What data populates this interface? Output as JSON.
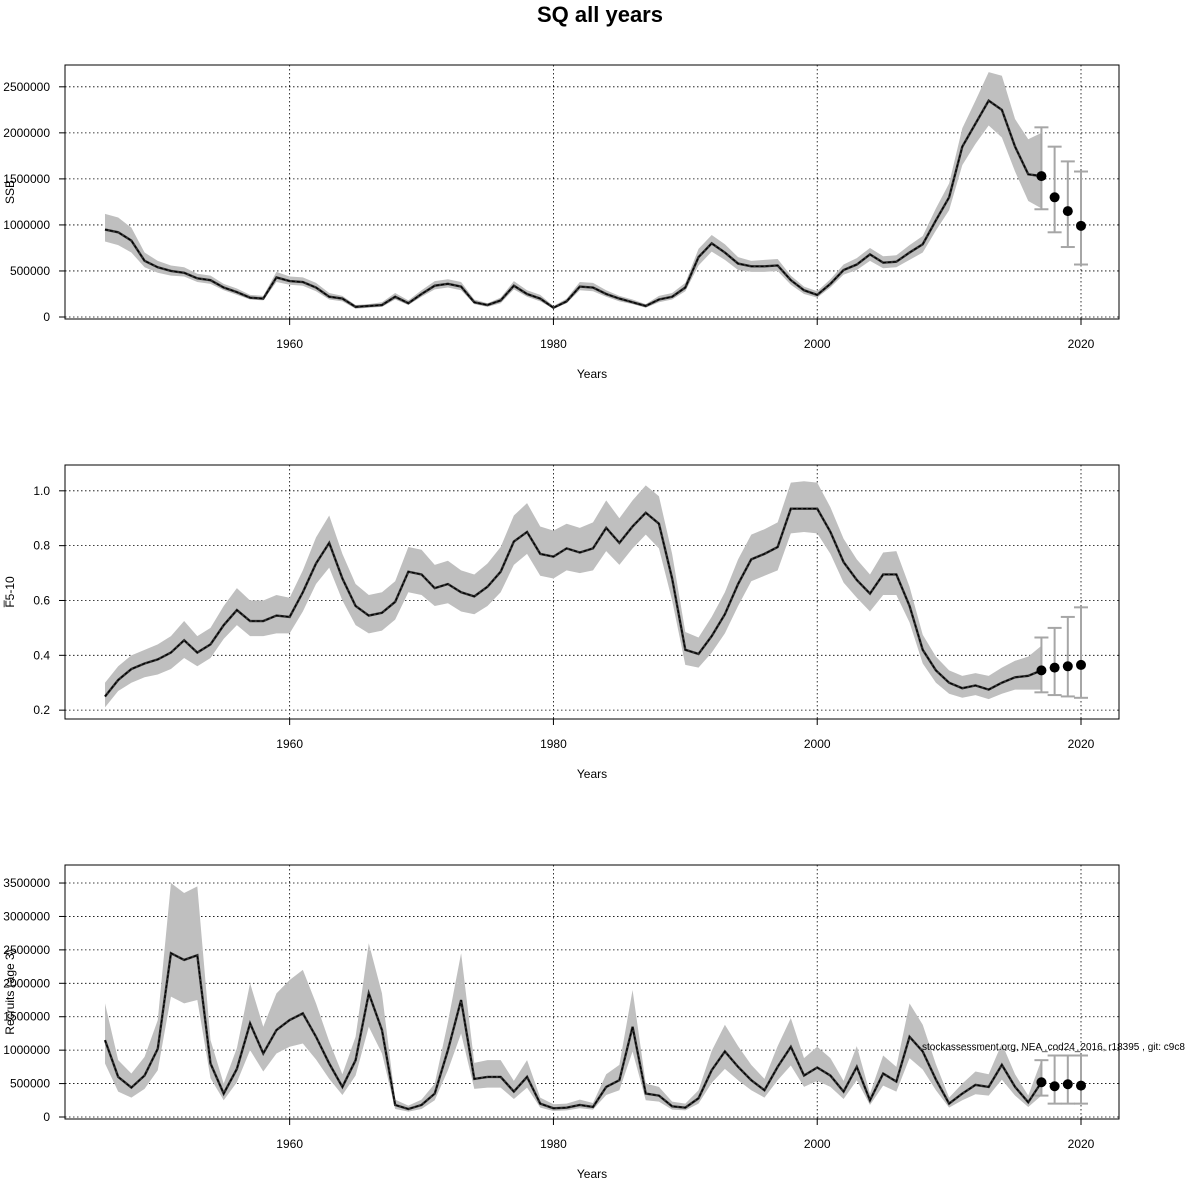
{
  "title": "SQ all years",
  "footnote": "stockassessment.org, NEA_cod24_2016, r18395 , git: c9c8",
  "colors": {
    "band": "#bfbfbf",
    "line": "#000000",
    "whisker": "#a6a6a6",
    "grid": "#000000"
  },
  "chart_data": [
    {
      "type": "line",
      "xlabel": "Years",
      "ylabel": "SSB",
      "xlim": [
        1946,
        2020
      ],
      "ylim": [
        0,
        2650000
      ],
      "xticks": [
        1960,
        1980,
        2000,
        2020
      ],
      "yticks": [
        0,
        500000,
        1000000,
        1500000,
        2000000,
        2500000
      ],
      "grid": true,
      "years": [
        1946,
        1947,
        1948,
        1949,
        1950,
        1951,
        1952,
        1953,
        1954,
        1955,
        1956,
        1957,
        1958,
        1959,
        1960,
        1961,
        1962,
        1963,
        1964,
        1965,
        1966,
        1967,
        1968,
        1969,
        1970,
        1971,
        1972,
        1973,
        1974,
        1975,
        1976,
        1977,
        1978,
        1979,
        1980,
        1981,
        1982,
        1983,
        1984,
        1985,
        1986,
        1987,
        1988,
        1989,
        1990,
        1991,
        1992,
        1993,
        1994,
        1995,
        1996,
        1997,
        1998,
        1999,
        2000,
        2001,
        2002,
        2003,
        2004,
        2005,
        2006,
        2007,
        2008,
        2009,
        2010,
        2011,
        2012,
        2013,
        2014,
        2015,
        2016,
        2017
      ],
      "estimate": [
        950000,
        920000,
        830000,
        610000,
        540000,
        500000,
        480000,
        420000,
        400000,
        320000,
        270000,
        210000,
        200000,
        430000,
        390000,
        380000,
        320000,
        220000,
        200000,
        110000,
        120000,
        130000,
        220000,
        150000,
        250000,
        340000,
        360000,
        330000,
        160000,
        130000,
        180000,
        340000,
        250000,
        200000,
        100000,
        170000,
        330000,
        320000,
        250000,
        200000,
        160000,
        120000,
        190000,
        220000,
        320000,
        650000,
        800000,
        700000,
        580000,
        550000,
        550000,
        560000,
        400000,
        290000,
        240000,
        360000,
        510000,
        570000,
        680000,
        590000,
        600000,
        700000,
        790000,
        1050000,
        1300000,
        1850000,
        2100000,
        2350000,
        2250000,
        1850000,
        1550000,
        1530000
      ],
      "lower": [
        820000,
        780000,
        700000,
        540000,
        480000,
        450000,
        440000,
        380000,
        360000,
        290000,
        240000,
        190000,
        180000,
        380000,
        350000,
        340000,
        280000,
        190000,
        170000,
        90000,
        100000,
        110000,
        190000,
        130000,
        220000,
        300000,
        320000,
        290000,
        140000,
        110000,
        150000,
        300000,
        220000,
        170000,
        90000,
        150000,
        290000,
        280000,
        220000,
        170000,
        140000,
        100000,
        160000,
        190000,
        280000,
        560000,
        710000,
        620000,
        510000,
        490000,
        490000,
        500000,
        350000,
        250000,
        210000,
        320000,
        460000,
        510000,
        610000,
        530000,
        540000,
        620000,
        700000,
        940000,
        1160000,
        1650000,
        1880000,
        2080000,
        1950000,
        1580000,
        1260000,
        1180000
      ],
      "upper": [
        1120000,
        1080000,
        970000,
        700000,
        610000,
        560000,
        540000,
        470000,
        450000,
        360000,
        310000,
        240000,
        230000,
        490000,
        440000,
        430000,
        370000,
        260000,
        230000,
        130000,
        140000,
        160000,
        260000,
        180000,
        290000,
        390000,
        410000,
        380000,
        190000,
        150000,
        210000,
        390000,
        290000,
        240000,
        120000,
        200000,
        380000,
        370000,
        290000,
        230000,
        190000,
        140000,
        230000,
        260000,
        370000,
        740000,
        890000,
        790000,
        650000,
        610000,
        620000,
        630000,
        450000,
        330000,
        280000,
        410000,
        570000,
        640000,
        750000,
        660000,
        670000,
        780000,
        880000,
        1180000,
        1450000,
        2050000,
        2350000,
        2660000,
        2620000,
        2150000,
        1930000,
        2000000
      ],
      "forecast": {
        "years": [
          2017,
          2018,
          2019,
          2020
        ],
        "values": [
          1530000,
          1300000,
          1150000,
          990000
        ],
        "lower": [
          1170000,
          920000,
          760000,
          570000
        ],
        "upper": [
          2060000,
          1850000,
          1690000,
          1580000
        ]
      }
    },
    {
      "type": "line",
      "xlabel": "Years",
      "ylabel": "F̅5-10",
      "xlim": [
        1946,
        2020
      ],
      "ylim": [
        0.175,
        1.065
      ],
      "xticks": [
        1960,
        1980,
        2000,
        2020
      ],
      "yticks": [
        0.2,
        0.4,
        0.6,
        0.8,
        1.0
      ],
      "ytick_labels": [
        "0.2",
        "0.4",
        "0.6",
        "0.8",
        "1.0"
      ],
      "grid": true,
      "years": [
        1946,
        1947,
        1948,
        1949,
        1950,
        1951,
        1952,
        1953,
        1954,
        1955,
        1956,
        1957,
        1958,
        1959,
        1960,
        1961,
        1962,
        1963,
        1964,
        1965,
        1966,
        1967,
        1968,
        1969,
        1970,
        1971,
        1972,
        1973,
        1974,
        1975,
        1976,
        1977,
        1978,
        1979,
        1980,
        1981,
        1982,
        1983,
        1984,
        1985,
        1986,
        1987,
        1988,
        1989,
        1990,
        1991,
        1992,
        1993,
        1994,
        1995,
        1996,
        1997,
        1998,
        1999,
        2000,
        2001,
        2002,
        2003,
        2004,
        2005,
        2006,
        2007,
        2008,
        2009,
        2010,
        2011,
        2012,
        2013,
        2014,
        2015,
        2016,
        2017
      ],
      "estimate": [
        0.25,
        0.31,
        0.35,
        0.37,
        0.385,
        0.41,
        0.455,
        0.41,
        0.44,
        0.51,
        0.565,
        0.525,
        0.525,
        0.545,
        0.54,
        0.63,
        0.735,
        0.81,
        0.68,
        0.58,
        0.545,
        0.555,
        0.595,
        0.705,
        0.695,
        0.645,
        0.66,
        0.63,
        0.615,
        0.65,
        0.705,
        0.815,
        0.85,
        0.77,
        0.76,
        0.79,
        0.775,
        0.79,
        0.865,
        0.81,
        0.87,
        0.92,
        0.88,
        0.68,
        0.42,
        0.405,
        0.47,
        0.55,
        0.66,
        0.75,
        0.77,
        0.795,
        0.935,
        0.935,
        0.935,
        0.85,
        0.74,
        0.675,
        0.625,
        0.695,
        0.695,
        0.58,
        0.42,
        0.345,
        0.3,
        0.28,
        0.29,
        0.275,
        0.3,
        0.32,
        0.325,
        0.345
      ],
      "lower": [
        0.21,
        0.27,
        0.3,
        0.32,
        0.33,
        0.35,
        0.39,
        0.36,
        0.39,
        0.46,
        0.51,
        0.47,
        0.47,
        0.48,
        0.48,
        0.56,
        0.66,
        0.72,
        0.6,
        0.51,
        0.48,
        0.49,
        0.53,
        0.63,
        0.62,
        0.58,
        0.59,
        0.56,
        0.55,
        0.58,
        0.63,
        0.73,
        0.77,
        0.69,
        0.68,
        0.71,
        0.7,
        0.71,
        0.78,
        0.73,
        0.79,
        0.84,
        0.79,
        0.6,
        0.365,
        0.355,
        0.41,
        0.48,
        0.58,
        0.67,
        0.69,
        0.71,
        0.845,
        0.85,
        0.845,
        0.77,
        0.665,
        0.61,
        0.56,
        0.62,
        0.62,
        0.52,
        0.37,
        0.3,
        0.26,
        0.245,
        0.255,
        0.24,
        0.26,
        0.275,
        0.275,
        0.275
      ],
      "upper": [
        0.3,
        0.36,
        0.4,
        0.42,
        0.44,
        0.47,
        0.525,
        0.47,
        0.5,
        0.58,
        0.645,
        0.6,
        0.6,
        0.62,
        0.61,
        0.71,
        0.83,
        0.91,
        0.77,
        0.66,
        0.62,
        0.63,
        0.67,
        0.795,
        0.785,
        0.73,
        0.745,
        0.71,
        0.695,
        0.735,
        0.795,
        0.91,
        0.955,
        0.87,
        0.855,
        0.88,
        0.865,
        0.885,
        0.965,
        0.9,
        0.965,
        1.02,
        0.98,
        0.77,
        0.485,
        0.465,
        0.54,
        0.63,
        0.75,
        0.84,
        0.86,
        0.885,
        1.03,
        1.035,
        1.03,
        0.94,
        0.825,
        0.75,
        0.695,
        0.775,
        0.78,
        0.65,
        0.475,
        0.395,
        0.345,
        0.325,
        0.335,
        0.325,
        0.355,
        0.38,
        0.395,
        0.435
      ],
      "forecast": {
        "years": [
          2017,
          2018,
          2019,
          2020
        ],
        "values": [
          0.345,
          0.355,
          0.36,
          0.365
        ],
        "lower": [
          0.265,
          0.255,
          0.25,
          0.245
        ],
        "upper": [
          0.465,
          0.5,
          0.54,
          0.575
        ]
      }
    },
    {
      "type": "line",
      "xlabel": "Years",
      "ylabel": "Recruits (age 3)",
      "xlim": [
        1946,
        2020
      ],
      "ylim": [
        0,
        3650000
      ],
      "xticks": [
        1960,
        1980,
        2000,
        2020
      ],
      "yticks": [
        0,
        500000,
        1000000,
        1500000,
        2000000,
        2500000,
        3000000,
        3500000
      ],
      "grid": true,
      "years": [
        1946,
        1947,
        1948,
        1949,
        1950,
        1951,
        1952,
        1953,
        1954,
        1955,
        1956,
        1957,
        1958,
        1959,
        1960,
        1961,
        1962,
        1963,
        1964,
        1965,
        1966,
        1967,
        1968,
        1969,
        1970,
        1971,
        1972,
        1973,
        1974,
        1975,
        1976,
        1977,
        1978,
        1979,
        1980,
        1981,
        1982,
        1983,
        1984,
        1985,
        1986,
        1987,
        1988,
        1989,
        1990,
        1991,
        1992,
        1993,
        1994,
        1995,
        1996,
        1997,
        1998,
        1999,
        2000,
        2001,
        2002,
        2003,
        2004,
        2005,
        2006,
        2007,
        2008,
        2009,
        2010,
        2011,
        2012,
        2013,
        2014,
        2015,
        2016,
        2017
      ],
      "estimate": [
        1150000,
        600000,
        440000,
        620000,
        1020000,
        2450000,
        2350000,
        2420000,
        800000,
        350000,
        720000,
        1400000,
        950000,
        1300000,
        1450000,
        1550000,
        1200000,
        800000,
        450000,
        850000,
        1850000,
        1300000,
        180000,
        120000,
        180000,
        350000,
        1000000,
        1750000,
        570000,
        600000,
        600000,
        380000,
        600000,
        200000,
        130000,
        140000,
        180000,
        150000,
        450000,
        550000,
        1350000,
        350000,
        320000,
        160000,
        140000,
        280000,
        700000,
        980000,
        750000,
        550000,
        400000,
        750000,
        1050000,
        620000,
        740000,
        620000,
        380000,
        750000,
        250000,
        650000,
        530000,
        1200000,
        980000,
        560000,
        200000,
        350000,
        480000,
        450000,
        780000,
        450000,
        220000,
        520000
      ],
      "lower": [
        800000,
        380000,
        290000,
        420000,
        700000,
        1800000,
        1700000,
        1750000,
        580000,
        250000,
        520000,
        1000000,
        680000,
        950000,
        1050000,
        1100000,
        860000,
        570000,
        330000,
        620000,
        1350000,
        950000,
        120000,
        80000,
        120000,
        250000,
        700000,
        1250000,
        420000,
        440000,
        440000,
        270000,
        440000,
        140000,
        90000,
        100000,
        130000,
        110000,
        330000,
        400000,
        980000,
        250000,
        230000,
        110000,
        100000,
        200000,
        510000,
        720000,
        550000,
        400000,
        290000,
        550000,
        770000,
        450000,
        540000,
        450000,
        270000,
        550000,
        180000,
        470000,
        380000,
        880000,
        710000,
        400000,
        140000,
        250000,
        340000,
        320000,
        560000,
        320000,
        150000,
        320000
      ],
      "upper": [
        1700000,
        850000,
        650000,
        900000,
        1450000,
        3500000,
        3350000,
        3450000,
        1150000,
        500000,
        1030000,
        2000000,
        1350000,
        1850000,
        2050000,
        2200000,
        1700000,
        1130000,
        640000,
        1200000,
        2600000,
        1850000,
        260000,
        170000,
        260000,
        500000,
        1420000,
        2450000,
        810000,
        850000,
        850000,
        540000,
        850000,
        290000,
        190000,
        200000,
        260000,
        210000,
        640000,
        780000,
        1900000,
        500000,
        450000,
        230000,
        200000,
        400000,
        990000,
        1380000,
        1060000,
        780000,
        570000,
        1060000,
        1480000,
        880000,
        1050000,
        880000,
        540000,
        1060000,
        350000,
        920000,
        750000,
        1700000,
        1380000,
        790000,
        290000,
        500000,
        680000,
        640000,
        1100000,
        640000,
        320000,
        850000
      ],
      "forecast": {
        "years": [
          2017,
          2018,
          2019,
          2020
        ],
        "values": [
          520000,
          460000,
          490000,
          470000
        ],
        "lower": [
          320000,
          200000,
          200000,
          200000
        ],
        "upper": [
          850000,
          920000,
          920000,
          920000
        ]
      }
    }
  ]
}
